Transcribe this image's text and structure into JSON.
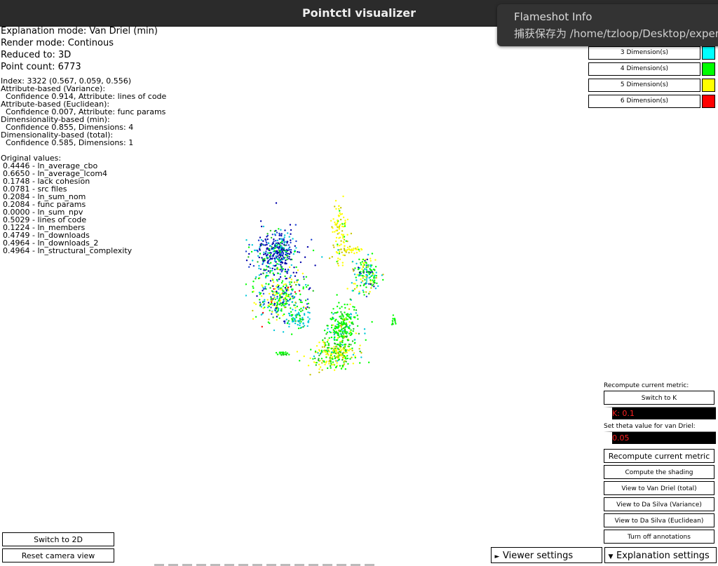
{
  "window": {
    "title": "Pointctl visualizer"
  },
  "notification": {
    "title": "Flameshot Info",
    "body": "捕获保存为 /home/tzloop/Desktop/experin"
  },
  "info": {
    "explanation_mode": "Explanation mode: Van Driel (min)",
    "render_mode": "Render mode: Continous",
    "reduced_to": "Reduced to: 3D",
    "point_count": "Point count: 6773"
  },
  "details": [
    "Index: 3322 (0.567, 0.059, 0.556)",
    "Attribute-based (Variance):",
    "  Confidence 0.914, Attribute: lines of code",
    "Attribute-based (Euclidean):",
    "  Confidence 0.007, Attribute: func params",
    "Dimensionality-based (min):",
    "  Confidence 0.855, Dimensions: 4",
    "Dimensionality-based (total):",
    "  Confidence 0.585, Dimensions: 1"
  ],
  "original_values": {
    "header": "Original values:",
    "rows": [
      "0.4446 - ln_average_cbo",
      "0.6650 - ln_average_lcom4",
      "0.1748 - lack cohesion",
      "0.0781 - src files",
      "0.2084 - ln_sum_nom",
      "0.2084 - func params",
      "0.0000 - ln_sum_npv",
      "0.5029 - lines of code",
      "0.1224 - ln_members",
      "0.4749 - ln_downloads",
      "0.4964 - ln_downloads_2",
      "0.4964 - ln_structural_complexity"
    ]
  },
  "legend": [
    {
      "label": "3 Dimension(s)",
      "color": "#00ffff"
    },
    {
      "label": "4 Dimension(s)",
      "color": "#00ff00"
    },
    {
      "label": "5 Dimension(s)",
      "color": "#ffff00"
    },
    {
      "label": "6 Dimension(s)",
      "color": "#ff0000"
    }
  ],
  "panel": {
    "recompute_label": "Recompute current metric:",
    "switch_k": "Switch to K",
    "k_value": "K: 0.1",
    "theta_label": "Set theta value for van Driel:",
    "theta_value": "0.05",
    "recompute_button": "Recompute current metric",
    "compute_shading": "Compute the shading",
    "view_vd_total": "View to Van Driel (total)",
    "view_ds_variance": "View to Da Silva (Variance)",
    "view_ds_euclidean": "View to Da Silva (Euclidean)",
    "turn_off_annotations": "Turn off annotations"
  },
  "bottom": {
    "switch_2d": "Switch to 2D",
    "reset_camera": "Reset camera view",
    "viewer_settings": "Viewer settings",
    "explanation_settings": "Explanation settings"
  },
  "colors": {
    "titlebar": "#2b2b2b",
    "notification": "#333333",
    "field_text": "#ff2020",
    "scatter_palette": [
      "#0000aa",
      "#1a3fd0",
      "#00c8d8",
      "#00ff00",
      "#22c022",
      "#ffff00",
      "#c8c800",
      "#ff0000"
    ]
  }
}
